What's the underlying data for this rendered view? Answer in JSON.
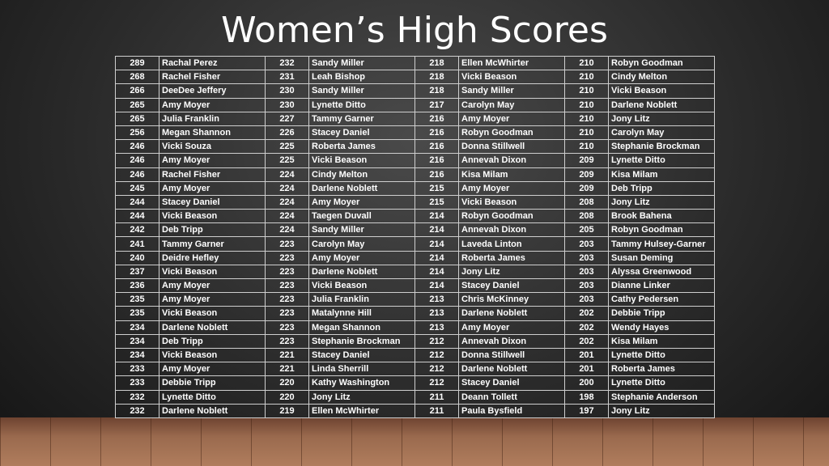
{
  "header": {
    "title": "Women’s High Scores"
  },
  "table": {
    "rows": [
      [
        289,
        "Rachal Perez",
        232,
        "Sandy Miller",
        218,
        "Ellen McWhirter",
        210,
        "Robyn Goodman"
      ],
      [
        268,
        "Rachel Fisher",
        231,
        "Leah Bishop",
        218,
        "Vicki Beason",
        210,
        "Cindy Melton"
      ],
      [
        266,
        "DeeDee Jeffery",
        230,
        "Sandy Miller",
        218,
        "Sandy Miller",
        210,
        "Vicki Beason"
      ],
      [
        265,
        "Amy Moyer",
        230,
        "Lynette Ditto",
        217,
        "Carolyn May",
        210,
        "Darlene Noblett"
      ],
      [
        265,
        "Julia Franklin",
        227,
        "Tammy Garner",
        216,
        "Amy Moyer",
        210,
        "Jony Litz"
      ],
      [
        256,
        "Megan Shannon",
        226,
        "Stacey Daniel",
        216,
        "Robyn Goodman",
        210,
        "Carolyn May"
      ],
      [
        246,
        "Vicki Souza",
        225,
        "Roberta James",
        216,
        "Donna Stillwell",
        210,
        "Stephanie Brockman"
      ],
      [
        246,
        "Amy Moyer",
        225,
        "Vicki Beason",
        216,
        "Annevah Dixon",
        209,
        "Lynette Ditto"
      ],
      [
        246,
        "Rachel Fisher",
        224,
        "Cindy Melton",
        216,
        "Kisa Milam",
        209,
        "Kisa Milam"
      ],
      [
        245,
        "Amy Moyer",
        224,
        "Darlene Noblett",
        215,
        "Amy Moyer",
        209,
        "Deb Tripp"
      ],
      [
        244,
        "Stacey Daniel",
        224,
        "Amy Moyer",
        215,
        "Vicki Beason",
        208,
        "Jony Litz"
      ],
      [
        244,
        "Vicki Beason",
        224,
        "Taegen Duvall",
        214,
        "Robyn Goodman",
        208,
        "Brook Bahena"
      ],
      [
        242,
        "Deb Tripp",
        224,
        "Sandy Miller",
        214,
        "Annevah Dixon",
        205,
        "Robyn Goodman"
      ],
      [
        241,
        "Tammy Garner",
        223,
        "Carolyn May",
        214,
        "Laveda Linton",
        203,
        "Tammy Hulsey-Garner"
      ],
      [
        240,
        "Deidre Hefley",
        223,
        "Amy Moyer",
        214,
        "Roberta James",
        203,
        "Susan Deming"
      ],
      [
        237,
        "Vicki Beason",
        223,
        "Darlene Noblett",
        214,
        "Jony Litz",
        203,
        "Alyssa Greenwood"
      ],
      [
        236,
        "Amy Moyer",
        223,
        "Vicki Beason",
        214,
        "Stacey Daniel",
        203,
        "Dianne Linker"
      ],
      [
        235,
        "Amy Moyer",
        223,
        "Julia Franklin",
        213,
        "Chris McKinney",
        203,
        "Cathy Pedersen"
      ],
      [
        235,
        "Vicki Beason",
        223,
        "Matalynne Hill",
        213,
        "Darlene Noblett",
        202,
        "Debbie Tripp"
      ],
      [
        234,
        "Darlene Noblett",
        223,
        "Megan Shannon",
        213,
        "Amy Moyer",
        202,
        "Wendy Hayes"
      ],
      [
        234,
        "Deb Tripp",
        223,
        "Stephanie Brockman",
        212,
        "Annevah Dixon",
        202,
        "Kisa Milam"
      ],
      [
        234,
        "Vicki Beason",
        221,
        "Stacey Daniel",
        212,
        "Donna Stillwell",
        201,
        "Lynette Ditto"
      ],
      [
        233,
        "Amy Moyer",
        221,
        "Linda Sherrill",
        212,
        "Darlene Noblett",
        201,
        "Roberta James"
      ],
      [
        233,
        "Debbie Tripp",
        220,
        "Kathy Washington",
        212,
        "Stacey Daniel",
        200,
        "Lynette Ditto"
      ],
      [
        232,
        "Lynette Ditto",
        220,
        "Jony Litz",
        211,
        "Deann Tollett",
        198,
        "Stephanie Anderson"
      ],
      [
        232,
        "Darlene Noblett",
        219,
        "Ellen McWhirter",
        211,
        "Paula Bysfield",
        197,
        "Jony Litz"
      ]
    ]
  }
}
